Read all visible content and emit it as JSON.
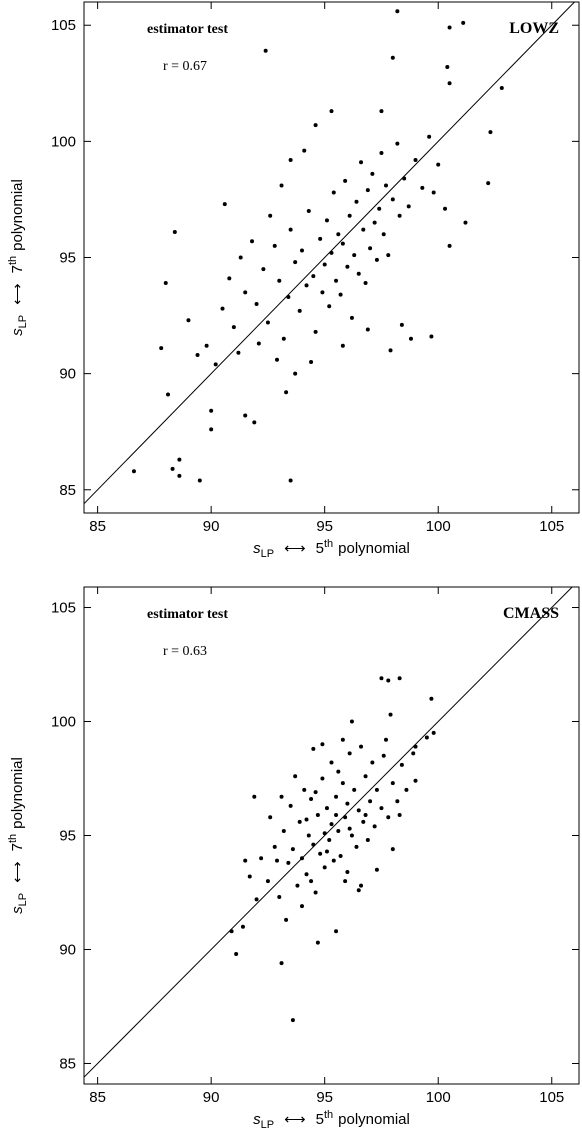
{
  "chart_data": [
    {
      "type": "scatter",
      "annotations": [
        "estimator test",
        "r = 0.67"
      ],
      "sample_label": "LOWZ",
      "xlabel": {
        "symbol": "s",
        "sub": "LP",
        "arrow": "⟷",
        "ordinal": "5",
        "sup": "th",
        "rest": "polynomial"
      },
      "ylabel": {
        "symbol": "s",
        "sub": "LP",
        "arrow": "⟷",
        "ordinal": "7",
        "sup": "th",
        "rest": "polynomial"
      },
      "xlim": [
        84.4,
        106.2
      ],
      "ylim": [
        84,
        106
      ],
      "xticks": [
        85,
        90,
        95,
        100,
        105
      ],
      "yticks": [
        85,
        90,
        95,
        100,
        105
      ],
      "color": "#000000",
      "x": [
        86.6,
        87.8,
        88,
        88.1,
        88.3,
        88.4,
        88.6,
        88.6,
        89.5,
        89,
        90.6,
        92.4,
        93.5,
        98.2,
        98,
        100.5,
        101.1,
        100.4,
        100.5,
        102.8,
        102.3,
        102.2,
        101.2,
        100.5,
        99.8,
        97.5,
        95.3,
        94.6,
        93.5,
        91.5,
        91.9,
        90,
        90,
        93.3,
        93.7,
        97.9,
        98.8,
        98.4,
        99.7,
        91,
        91.5,
        92,
        92.3,
        92.5,
        92.8,
        93,
        93.2,
        93.4,
        93.5,
        93.7,
        93.9,
        94,
        94.2,
        94.3,
        94.5,
        94.6,
        94.8,
        94.9,
        95,
        95.1,
        95.2,
        95.3,
        95.4,
        95.5,
        95.6,
        95.7,
        95.8,
        95.9,
        96,
        96.1,
        96.2,
        96.3,
        96.4,
        96.5,
        96.6,
        96.7,
        96.8,
        96.9,
        97,
        97.1,
        97.2,
        97.3,
        97.4,
        97.5,
        97.6,
        97.7,
        97.8,
        98,
        98.2,
        98.3,
        98.5,
        98.7,
        99,
        99.3,
        99.6,
        100,
        100.3,
        89.8,
        90.2,
        90.5,
        90.8,
        91.2,
        91.8,
        92.1,
        92.6,
        93.1,
        94.1,
        92.9,
        94.4,
        95.8,
        96.9,
        91.3,
        89.4
      ],
      "y": [
        85.8,
        91.1,
        93.9,
        89.1,
        85.9,
        96.1,
        86.3,
        85.6,
        85.4,
        92.3,
        97.3,
        103.9,
        85.4,
        105.6,
        103.6,
        104.9,
        105.1,
        103.2,
        102.5,
        102.3,
        100.4,
        98.2,
        96.5,
        95.5,
        97.8,
        101.3,
        101.3,
        100.7,
        99.2,
        88.2,
        87.9,
        87.6,
        88.4,
        89.2,
        90,
        91,
        91.5,
        92.1,
        91.6,
        92,
        93.5,
        93,
        94.5,
        92.2,
        95.5,
        94,
        91.5,
        93.3,
        96.2,
        94.8,
        92.7,
        95.3,
        93.8,
        97,
        94.2,
        91.8,
        95.8,
        93.5,
        94.7,
        96.6,
        92.9,
        95.2,
        97.8,
        94,
        96,
        93.4,
        95.6,
        98.3,
        94.6,
        96.8,
        92.4,
        95.1,
        97.4,
        94.3,
        99.1,
        96.2,
        93.9,
        97.9,
        95.4,
        98.6,
        96.5,
        94.9,
        97.1,
        99.5,
        96,
        98.1,
        95.1,
        97.5,
        99.9,
        96.8,
        98.4,
        97.2,
        99.2,
        98,
        100.2,
        99,
        97.1,
        91.2,
        90.4,
        92.8,
        94.1,
        90.9,
        95.7,
        91.3,
        96.8,
        98.1,
        99.6,
        90.6,
        90.5,
        91.2,
        91.9,
        95,
        90.8
      ]
    },
    {
      "type": "scatter",
      "annotations": [
        "estimator test",
        "r = 0.63"
      ],
      "sample_label": "CMASS",
      "xlabel": {
        "symbol": "s",
        "sub": "LP",
        "arrow": "⟷",
        "ordinal": "5",
        "sup": "th",
        "rest": "polynomial"
      },
      "ylabel": {
        "symbol": "s",
        "sub": "LP",
        "arrow": "⟷",
        "ordinal": "7",
        "sup": "th",
        "rest": "polynomial"
      },
      "xlim": [
        84.4,
        106.2
      ],
      "ylim": [
        84.1,
        105.9
      ],
      "xticks": [
        85,
        90,
        95,
        100,
        105
      ],
      "yticks": [
        85,
        90,
        95,
        100,
        105
      ],
      "color": "#000000",
      "x": [
        90.9,
        91.1,
        91.4,
        93.1,
        93.6,
        97.5,
        97.8,
        98.3,
        97.9,
        99.7,
        99.5,
        99.8,
        99,
        91.9,
        91.5,
        94.7,
        95.5,
        96.6,
        98.3,
        99,
        92.5,
        92.8,
        93,
        93.2,
        93.4,
        93.5,
        93.6,
        93.8,
        93.9,
        94,
        94.1,
        94.2,
        94.3,
        94.4,
        94.5,
        94.6,
        94.7,
        94.8,
        94.9,
        95,
        95,
        95.1,
        95.2,
        95.3,
        95.3,
        95.4,
        95.5,
        95.6,
        95.7,
        95.8,
        95.9,
        96,
        96,
        96.1,
        96.2,
        96.3,
        96.4,
        96.5,
        96.6,
        96.7,
        96.8,
        96.9,
        97,
        97.1,
        97.2,
        97.3,
        97.5,
        97.6,
        97.8,
        98,
        98.2,
        98.4,
        98.6,
        98.9,
        92,
        92.2,
        91.7,
        92.6,
        93.3,
        94,
        94.5,
        95.8,
        96.5,
        97.3,
        98,
        93.7,
        94.9,
        96.2,
        92.9,
        94.2,
        95.5,
        95.1,
        94.6,
        96.1,
        95.6,
        93.1,
        97.7,
        95.9,
        94.4,
        96.8
      ],
      "y": [
        90.8,
        89.8,
        91,
        89.4,
        86.9,
        101.9,
        101.8,
        101.9,
        100.3,
        101,
        99.3,
        99.5,
        98.9,
        96.7,
        93.9,
        90.3,
        90.8,
        92.8,
        95.9,
        97.4,
        93,
        94.5,
        92.3,
        95.2,
        93.8,
        96.3,
        94.4,
        92.8,
        95.6,
        94,
        97,
        93.3,
        95,
        96.6,
        94.6,
        92.5,
        95.9,
        94.2,
        97.5,
        95.1,
        93.6,
        96.2,
        94.8,
        95.5,
        98.2,
        93.9,
        96.7,
        95.2,
        94.1,
        97.3,
        95.8,
        93.4,
        96.4,
        98.6,
        95,
        97,
        94.5,
        96.1,
        98.9,
        95.6,
        97.6,
        94.8,
        96.5,
        98.2,
        95.4,
        97,
        96.2,
        98.5,
        95.8,
        97.3,
        96.5,
        98.1,
        97,
        98.6,
        92.2,
        94,
        93.2,
        95.8,
        91.3,
        91.9,
        98.8,
        99.2,
        92.6,
        93.5,
        94.4,
        97.6,
        99,
        100,
        93.9,
        95.7,
        95.9,
        94.3,
        96.9,
        95.3,
        97.8,
        96.7,
        99.2,
        93,
        93,
        95.9
      ]
    }
  ]
}
